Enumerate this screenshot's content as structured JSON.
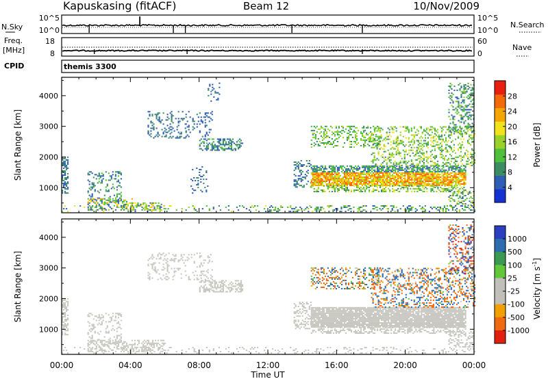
{
  "header": {
    "station": "Kapuskasing (fitACF)",
    "beam": "Beam 12",
    "date": "10/Nov/2009"
  },
  "status_panels": {
    "noise_left_label": "N.Sky",
    "noise_right_label": "N.Search",
    "noise_left_ticks": [
      "10^5",
      "10^0"
    ],
    "noise_right_ticks": [
      "10^5",
      "10^0"
    ],
    "freq_label_line1": "Freq.",
    "freq_label_line2": "[MHz]",
    "freq_ticks": [
      "18",
      "8"
    ],
    "nave_label": "Nave",
    "nave_ticks": [
      "60",
      "0"
    ],
    "cpid_label": "CPID",
    "cpid_value": "themis 3300"
  },
  "colors": {
    "power": [
      "#1432d2",
      "#2f5fb5",
      "#3c8c64",
      "#4ec03c",
      "#9ad22a",
      "#f2e21e",
      "#f5a500",
      "#f46a0a",
      "#e81e10"
    ],
    "velocity": [
      "#2b3fbf",
      "#2c6db0",
      "#3a9a52",
      "#62c83a",
      "#c0c0b8",
      "#c0c0b8",
      "#f0a000",
      "#f06a10",
      "#e22010"
    ],
    "ground_scatter": "#c8c8c0"
  },
  "chart_data": [
    {
      "type": "heatmap",
      "name": "power-panel",
      "xlabel": "Time UT",
      "ylabel": "Slant Range [km]",
      "x_ticks": [
        "00:00",
        "04:00",
        "08:00",
        "12:00",
        "16:00",
        "20:00",
        "00:00"
      ],
      "x_range_hours": [
        0,
        24
      ],
      "y_ticks": [
        1000,
        2000,
        3000,
        4000
      ],
      "y_range": [
        180,
        4600
      ],
      "colorbar": {
        "label": "Power [dB]",
        "ticks": [
          4,
          8,
          12,
          16,
          20,
          24,
          28
        ],
        "range": [
          0,
          32
        ]
      },
      "regions": [
        {
          "t": [
            0.0,
            0.4
          ],
          "r": [
            800,
            2000
          ],
          "v": [
            4,
            10
          ],
          "d": 0.55
        },
        {
          "t": [
            0.0,
            24.0
          ],
          "r": [
            200,
            420
          ],
          "v": [
            4,
            20
          ],
          "d": 0.12
        },
        {
          "t": [
            1.5,
            3.5
          ],
          "r": [
            500,
            1500
          ],
          "v": [
            4,
            12
          ],
          "d": 0.25
        },
        {
          "t": [
            1.5,
            4.2
          ],
          "r": [
            250,
            650
          ],
          "v": [
            4,
            24
          ],
          "d": 0.45
        },
        {
          "t": [
            4.0,
            6.0
          ],
          "r": [
            250,
            500
          ],
          "v": [
            4,
            24
          ],
          "d": 0.4
        },
        {
          "t": [
            5.0,
            7.2
          ],
          "r": [
            2600,
            3500
          ],
          "v": [
            4,
            10
          ],
          "d": 0.22
        },
        {
          "t": [
            8.0,
            10.5
          ],
          "r": [
            2200,
            2600
          ],
          "v": [
            4,
            12
          ],
          "d": 0.45
        },
        {
          "t": [
            7.2,
            8.8
          ],
          "r": [
            2600,
            3500
          ],
          "v": [
            4,
            8
          ],
          "d": 0.15
        },
        {
          "t": [
            8.5,
            9.2
          ],
          "r": [
            3800,
            4400
          ],
          "v": [
            4,
            8
          ],
          "d": 0.15
        },
        {
          "t": [
            7.5,
            8.5
          ],
          "r": [
            800,
            1700
          ],
          "v": [
            4,
            8
          ],
          "d": 0.15
        },
        {
          "t": [
            13.5,
            14.5
          ],
          "r": [
            1000,
            1900
          ],
          "v": [
            4,
            10
          ],
          "d": 0.35
        },
        {
          "t": [
            14.5,
            23.5
          ],
          "r": [
            1050,
            1500
          ],
          "v": [
            16,
            28
          ],
          "d": 0.85
        },
        {
          "t": [
            14.5,
            23.5
          ],
          "r": [
            1500,
            1700
          ],
          "v": [
            4,
            14
          ],
          "d": 0.6
        },
        {
          "t": [
            14.5,
            23.5
          ],
          "r": [
            850,
            1050
          ],
          "v": [
            8,
            20
          ],
          "d": 0.4
        },
        {
          "t": [
            14.5,
            18.5
          ],
          "r": [
            2300,
            3000
          ],
          "v": [
            8,
            18
          ],
          "d": 0.3
        },
        {
          "t": [
            18.0,
            24.0
          ],
          "r": [
            1700,
            3000
          ],
          "v": [
            8,
            20
          ],
          "d": 0.3
        },
        {
          "t": [
            22.5,
            24.0
          ],
          "r": [
            2800,
            4400
          ],
          "v": [
            4,
            16
          ],
          "d": 0.3
        },
        {
          "t": [
            22.5,
            24.0
          ],
          "r": [
            400,
            900
          ],
          "v": [
            4,
            20
          ],
          "d": 0.3
        },
        {
          "t": [
            12.0,
            24.0
          ],
          "r": [
            200,
            400
          ],
          "v": [
            4,
            16
          ],
          "d": 0.15
        }
      ]
    },
    {
      "type": "heatmap",
      "name": "velocity-panel",
      "xlabel": "Time UT",
      "ylabel": "Slant Range [km]",
      "x_ticks": [
        "00:00",
        "04:00",
        "08:00",
        "12:00",
        "16:00",
        "20:00",
        "00:00"
      ],
      "x_range_hours": [
        0,
        24
      ],
      "y_ticks": [
        1000,
        2000,
        3000,
        4000
      ],
      "y_range": [
        180,
        4600
      ],
      "colorbar": {
        "label": "Velocity [m s^-1]",
        "ticks": [
          "1000",
          "500",
          "100",
          "25",
          "-25",
          "-100",
          "-500",
          "-1000"
        ]
      },
      "regions": [
        {
          "t": [
            0.0,
            0.4
          ],
          "r": [
            800,
            2000
          ],
          "v": [
            0,
            0
          ],
          "d": 0.55
        },
        {
          "t": [
            0.0,
            24.0
          ],
          "r": [
            200,
            420
          ],
          "v": [
            0,
            0
          ],
          "d": 0.12
        },
        {
          "t": [
            1.5,
            3.5
          ],
          "r": [
            500,
            1500
          ],
          "v": [
            0,
            0
          ],
          "d": 0.25
        },
        {
          "t": [
            1.5,
            6.0
          ],
          "r": [
            250,
            650
          ],
          "v": [
            0,
            0
          ],
          "d": 0.45
        },
        {
          "t": [
            5.0,
            7.2
          ],
          "r": [
            2600,
            3500
          ],
          "v": [
            0,
            0
          ],
          "d": 0.22
        },
        {
          "t": [
            8.0,
            10.5
          ],
          "r": [
            2200,
            2600
          ],
          "v": [
            0,
            0
          ],
          "d": 0.45
        },
        {
          "t": [
            7.2,
            8.8
          ],
          "r": [
            2600,
            3500
          ],
          "v": [
            0,
            0
          ],
          "d": 0.15
        },
        {
          "t": [
            13.5,
            14.5
          ],
          "r": [
            1000,
            1900
          ],
          "v": [
            0,
            0
          ],
          "d": 0.35
        },
        {
          "t": [
            14.5,
            23.5
          ],
          "r": [
            1050,
            1700
          ],
          "v": [
            0,
            0
          ],
          "d": 0.9
        },
        {
          "t": [
            14.5,
            23.5
          ],
          "r": [
            850,
            1050
          ],
          "v": [
            0,
            0
          ],
          "d": 0.4
        },
        {
          "t": [
            14.5,
            18.5
          ],
          "r": [
            2300,
            3000
          ],
          "v": [
            -300,
            300
          ],
          "d": 0.3
        },
        {
          "t": [
            18.0,
            24.0
          ],
          "r": [
            1700,
            3000
          ],
          "v": [
            -400,
            400
          ],
          "d": 0.3
        },
        {
          "t": [
            22.5,
            24.0
          ],
          "r": [
            2800,
            4400
          ],
          "v": [
            -800,
            800
          ],
          "d": 0.3
        },
        {
          "t": [
            22.5,
            24.0
          ],
          "r": [
            400,
            900
          ],
          "v": [
            0,
            0
          ],
          "d": 0.3
        }
      ]
    }
  ]
}
